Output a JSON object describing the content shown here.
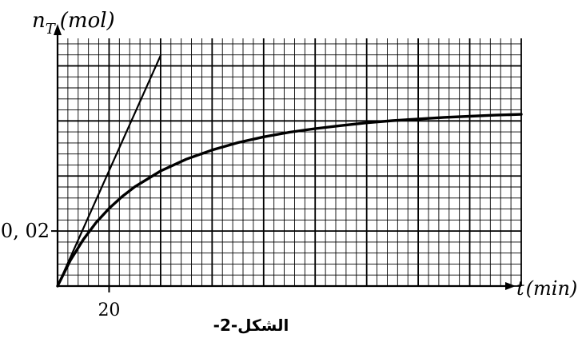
{
  "chart_data": {
    "type": "line",
    "title": "",
    "caption": "الشكل-2-",
    "ylabel_symbol": "n",
    "ylabel_subscript": "T",
    "ylabel_unit": "(mol)",
    "xlabel_symbol": "t",
    "xlabel_unit": "(min)",
    "xlim": [
      0,
      180
    ],
    "ylim": [
      0,
      0.09
    ],
    "x_ticks": [
      20
    ],
    "x_tick_labels": [
      "20"
    ],
    "y_ticks": [
      0.02
    ],
    "y_tick_labels": [
      "0, 02"
    ],
    "grid": true,
    "series": [
      {
        "kind": "curve",
        "x": [
          0,
          5,
          10,
          15,
          20,
          25,
          30,
          40,
          50,
          60,
          70,
          80,
          90,
          100,
          110,
          120,
          130,
          140,
          150,
          160,
          170,
          180
        ],
        "y": [
          0,
          0.0094,
          0.0169,
          0.0231,
          0.0282,
          0.0325,
          0.0361,
          0.0418,
          0.0461,
          0.0494,
          0.0521,
          0.0542,
          0.0559,
          0.0572,
          0.0583,
          0.0593,
          0.0601,
          0.0607,
          0.0613,
          0.0617,
          0.0621,
          0.0624
        ]
      },
      {
        "kind": "tangent-at-origin",
        "x": [
          0,
          40
        ],
        "y": [
          0,
          0.0838
        ]
      }
    ]
  }
}
